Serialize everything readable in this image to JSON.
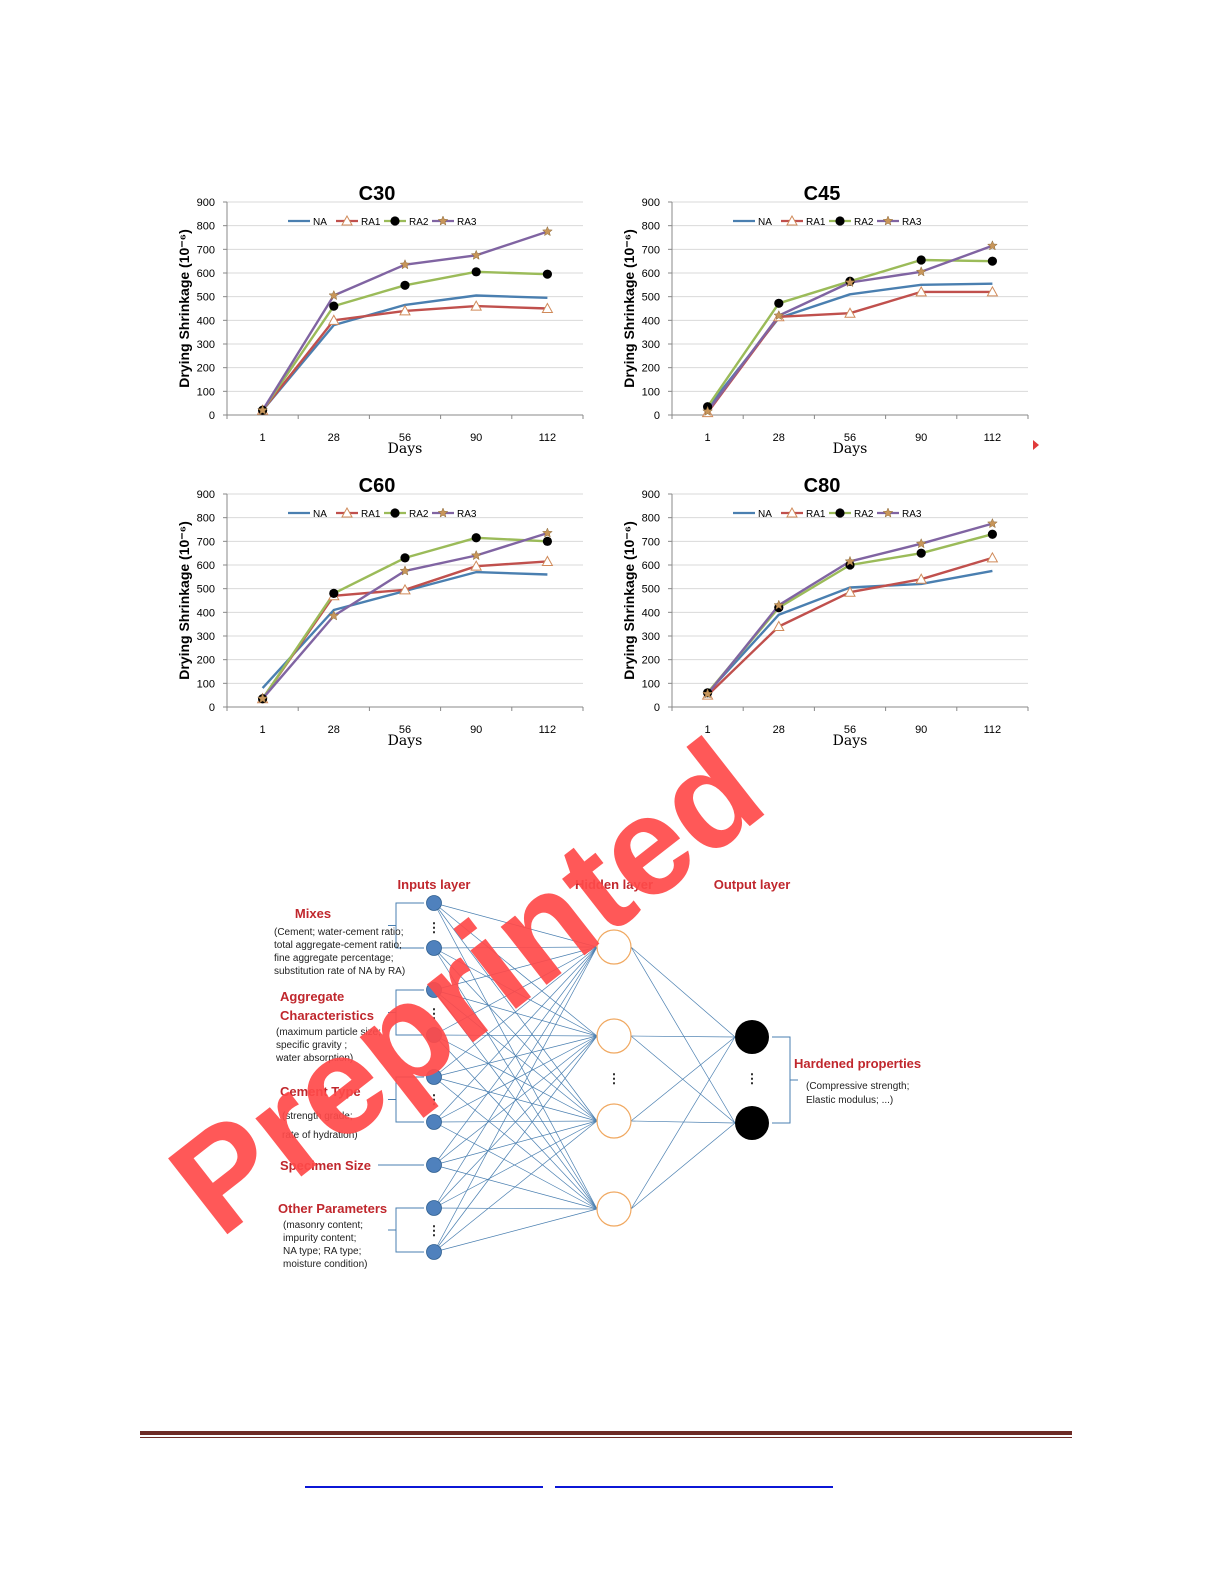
{
  "chart_data": [
    {
      "type": "line",
      "title": "C30",
      "xlabel": "Days",
      "ylabel": "Drying Shrinkage (10⁻⁶)",
      "categories": [
        "1",
        "28",
        "56",
        "90",
        "112"
      ],
      "ylim": [
        0,
        900
      ],
      "yticks": [
        0,
        100,
        200,
        300,
        400,
        500,
        600,
        700,
        800,
        900
      ],
      "grid": true,
      "legend": "top",
      "series": [
        {
          "name": "NA",
          "values": [
            20,
            380,
            465,
            505,
            495
          ]
        },
        {
          "name": "RA1",
          "values": [
            20,
            400,
            440,
            460,
            450
          ]
        },
        {
          "name": "RA2",
          "values": [
            20,
            460,
            548,
            605,
            595
          ]
        },
        {
          "name": "RA3",
          "values": [
            20,
            505,
            635,
            675,
            775
          ]
        }
      ]
    },
    {
      "type": "line",
      "title": "C45",
      "xlabel": "Days",
      "ylabel": "Drying Shrinkage (10⁻⁶)",
      "categories": [
        "1",
        "28",
        "56",
        "90",
        "112"
      ],
      "ylim": [
        0,
        900
      ],
      "yticks": [
        0,
        100,
        200,
        300,
        400,
        500,
        600,
        700,
        800,
        900
      ],
      "grid": true,
      "legend": "top",
      "series": [
        {
          "name": "NA",
          "values": [
            30,
            410,
            510,
            550,
            555
          ]
        },
        {
          "name": "RA1",
          "values": [
            10,
            415,
            430,
            520,
            520
          ]
        },
        {
          "name": "RA2",
          "values": [
            35,
            472,
            565,
            655,
            650
          ]
        },
        {
          "name": "RA3",
          "values": [
            15,
            420,
            560,
            605,
            715
          ]
        }
      ]
    },
    {
      "type": "line",
      "title": "C60",
      "xlabel": "Days",
      "ylabel": "Drying Shrinkage (10⁻⁶)",
      "categories": [
        "1",
        "28",
        "56",
        "90",
        "112"
      ],
      "ylim": [
        0,
        900
      ],
      "yticks": [
        0,
        100,
        200,
        300,
        400,
        500,
        600,
        700,
        800,
        900
      ],
      "grid": true,
      "legend": "top",
      "series": [
        {
          "name": "NA",
          "values": [
            80,
            410,
            490,
            570,
            560
          ]
        },
        {
          "name": "RA1",
          "values": [
            35,
            470,
            495,
            595,
            615
          ]
        },
        {
          "name": "RA2",
          "values": [
            35,
            480,
            630,
            715,
            700
          ]
        },
        {
          "name": "RA3",
          "values": [
            35,
            385,
            575,
            640,
            735
          ]
        }
      ]
    },
    {
      "type": "line",
      "title": "C80",
      "xlabel": "Days",
      "ylabel": "Drying Shrinkage (10⁻⁶)",
      "categories": [
        "1",
        "28",
        "56",
        "90",
        "112"
      ],
      "ylim": [
        0,
        900
      ],
      "yticks": [
        0,
        100,
        200,
        300,
        400,
        500,
        600,
        700,
        800,
        900
      ],
      "grid": true,
      "legend": "top",
      "series": [
        {
          "name": "NA",
          "values": [
            60,
            390,
            505,
            520,
            575
          ]
        },
        {
          "name": "RA1",
          "values": [
            50,
            340,
            485,
            540,
            630
          ]
        },
        {
          "name": "RA2",
          "values": [
            60,
            420,
            600,
            650,
            730
          ]
        },
        {
          "name": "RA3",
          "values": [
            55,
            430,
            615,
            690,
            775
          ]
        }
      ]
    }
  ],
  "series_styles": {
    "NA": {
      "color": "#4a7fb0",
      "marker": "none"
    },
    "RA1": {
      "color": "#c0504d",
      "marker": "triangle"
    },
    "RA2": {
      "color": "#9bbb59",
      "marker": "circle"
    },
    "RA3": {
      "color": "#8064a2",
      "marker": "star"
    }
  },
  "diagram": {
    "input_header": "Inputs layer",
    "hidden_header": "Hidden layer",
    "output_header": "Output layer",
    "groups": [
      {
        "title": "Mixes",
        "lines": [
          "(Cement; water-cement ratio;",
          "total aggregate-cement ratio;",
          "fine aggregate percentage;",
          "substitution rate of NA by RA)"
        ]
      },
      {
        "title": "Aggregate",
        "title2": "Characteristics",
        "lines": [
          "(maximum particle size;",
          "specific gravity ;",
          "water absorption)"
        ]
      },
      {
        "title": "Cement Type",
        "lines": [
          "(strength grade;",
          "rate of hydration)"
        ]
      },
      {
        "title": "Specimen Size",
        "lines": []
      },
      {
        "title": "Other Parameters",
        "lines": [
          "(masonry content;",
          "impurity content;",
          "NA type; RA type;",
          "moisture condition)"
        ]
      }
    ],
    "output_title": "Hardened properties",
    "output_lines": [
      "(Compressive strength;",
      "Elastic modulus; ...)"
    ],
    "ellipsis": "⋮",
    "colors": {
      "input_node": "#4f81bd",
      "hidden_node": "#f0a860",
      "output_node": "#000000",
      "edge": "#4a7fb0",
      "label": "#c0272d"
    }
  },
  "watermark": {
    "text": "Preprinted",
    "color": "#ff4a4a"
  }
}
